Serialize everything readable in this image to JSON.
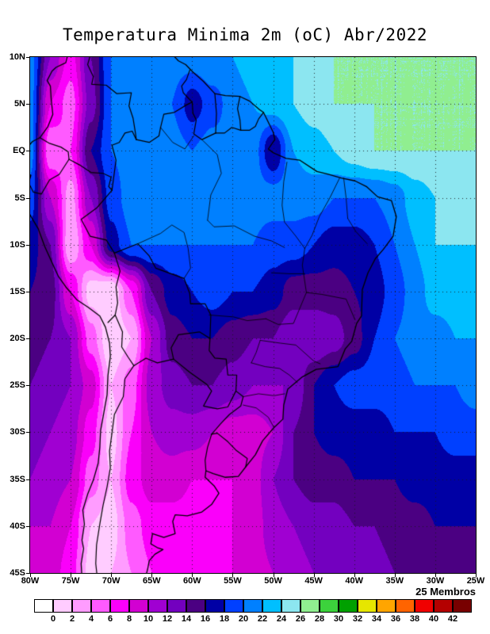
{
  "title": "Temperatura Minima 2m (oC) Abr/2022",
  "chart_data": {
    "type": "heatmap",
    "title": "Temperatura Minima 2m (oC) Abr/2022",
    "annotation": "25 Membros",
    "units": "oC",
    "projection": "latlon",
    "lon_range": [
      -80,
      -25
    ],
    "lat_range": [
      -45,
      10
    ],
    "grid_interval_deg": 5,
    "grid_line_style": "dotted",
    "lon_ticks": [
      -80,
      -75,
      -70,
      -65,
      -60,
      -55,
      -50,
      -45,
      -40,
      -35,
      -30,
      -25
    ],
    "lon_tick_labels": [
      "80W",
      "75W",
      "70W",
      "65W",
      "60W",
      "55W",
      "50W",
      "45W",
      "40W",
      "35W",
      "30W",
      "25W"
    ],
    "lat_ticks": [
      10,
      5,
      0,
      -5,
      -10,
      -15,
      -20,
      -25,
      -30,
      -35,
      -40,
      -45
    ],
    "lat_tick_labels": [
      "10N",
      "5N",
      "EQ",
      "5S",
      "10S",
      "15S",
      "20S",
      "25S",
      "30S",
      "35S",
      "40S",
      "45S"
    ],
    "colorbar": {
      "levels": [
        0,
        2,
        4,
        6,
        8,
        10,
        12,
        14,
        16,
        18,
        20,
        22,
        24,
        26,
        28,
        30,
        32,
        34,
        36,
        38,
        40,
        42
      ],
      "labels": [
        "0",
        "2",
        "4",
        "6",
        "8",
        "10",
        "12",
        "14",
        "16",
        "18",
        "20",
        "22",
        "24",
        "26",
        "28",
        "30",
        "32",
        "34",
        "36",
        "38",
        "40",
        "42"
      ],
      "colors": [
        "#ffffff",
        "#ffccff",
        "#ff9cff",
        "#ff5aff",
        "#fa00fa",
        "#d200d2",
        "#a000d2",
        "#7300bf",
        "#4b0082",
        "#0000a5",
        "#0040ff",
        "#0080ff",
        "#00bfff",
        "#8ce6f0",
        "#90ee90",
        "#3cd23c",
        "#00a000",
        "#e6e600",
        "#ffa500",
        "#ff6400",
        "#f00000",
        "#b40000",
        "#780000"
      ]
    },
    "grid": {
      "lons": [
        -80,
        -77.5,
        -75,
        -72.5,
        -70,
        -67.5,
        -65,
        -62.5,
        -60,
        -57.5,
        -55,
        -52.5,
        -50,
        -47.5,
        -45,
        -42.5,
        -40,
        -37.5,
        -35,
        -32.5,
        -30,
        -27.5,
        -25
      ],
      "lats": [
        10,
        5,
        0,
        -5,
        -10,
        -15,
        -20,
        -25,
        -30,
        -35,
        -40,
        -45
      ],
      "values": [
        [
          21,
          12,
          7,
          14,
          20,
          21,
          21,
          21,
          21,
          22,
          22,
          23,
          23,
          24,
          25,
          26,
          26,
          26,
          26,
          26,
          26,
          26,
          26
        ],
        [
          21,
          8,
          5,
          13,
          20,
          21,
          21,
          20,
          17,
          19,
          21,
          22,
          23,
          24,
          25,
          26,
          26,
          26,
          26,
          26,
          26,
          26,
          26
        ],
        [
          21,
          4,
          6,
          16,
          20,
          21,
          21,
          21,
          20,
          21,
          21,
          21,
          16,
          22,
          23,
          24,
          25,
          26,
          26,
          26,
          26,
          26,
          26
        ],
        [
          19,
          10,
          3,
          12,
          19,
          21,
          21,
          21,
          21,
          21,
          21,
          21,
          21,
          21,
          21,
          20,
          20,
          20,
          21,
          23,
          24,
          25,
          25
        ],
        [
          17,
          14,
          2,
          8,
          17,
          20,
          20,
          20,
          20,
          20,
          20,
          20,
          19,
          19,
          18,
          17,
          17,
          18,
          20,
          22,
          24,
          24,
          24
        ],
        [
          16,
          15,
          8,
          1,
          0,
          6,
          14,
          17,
          18,
          19,
          18,
          18,
          17,
          15,
          15,
          15,
          16,
          17,
          19,
          21,
          23,
          23,
          23
        ],
        [
          15,
          14,
          12,
          5,
          0,
          2,
          10,
          15,
          16,
          16,
          15,
          14,
          14,
          12,
          12,
          13,
          15,
          18,
          20,
          21,
          21,
          22,
          22
        ],
        [
          14,
          13,
          12,
          9,
          2,
          5,
          11,
          13,
          14,
          14,
          13,
          12,
          12,
          12,
          16,
          18,
          19,
          19,
          19,
          20,
          20,
          20,
          21
        ],
        [
          13,
          12,
          11,
          7,
          1,
          6,
          10,
          11,
          11,
          10,
          9,
          9,
          10,
          14,
          16,
          17,
          17,
          17,
          18,
          18,
          18,
          19,
          19
        ],
        [
          12,
          11,
          10,
          5,
          2,
          7,
          9,
          9,
          8,
          8,
          8,
          9,
          12,
          14,
          15,
          15,
          16,
          16,
          16,
          17,
          17,
          17,
          17
        ],
        [
          10,
          10,
          8,
          2,
          1,
          5,
          7,
          7,
          7,
          7,
          8,
          9,
          11,
          12,
          13,
          13,
          14,
          14,
          15,
          15,
          16,
          16,
          16
        ],
        [
          9,
          9,
          7,
          1,
          2,
          4,
          6,
          6,
          6,
          7,
          8,
          9,
          10,
          11,
          12,
          12,
          13,
          13,
          14,
          14,
          15,
          15,
          16
        ]
      ]
    }
  }
}
